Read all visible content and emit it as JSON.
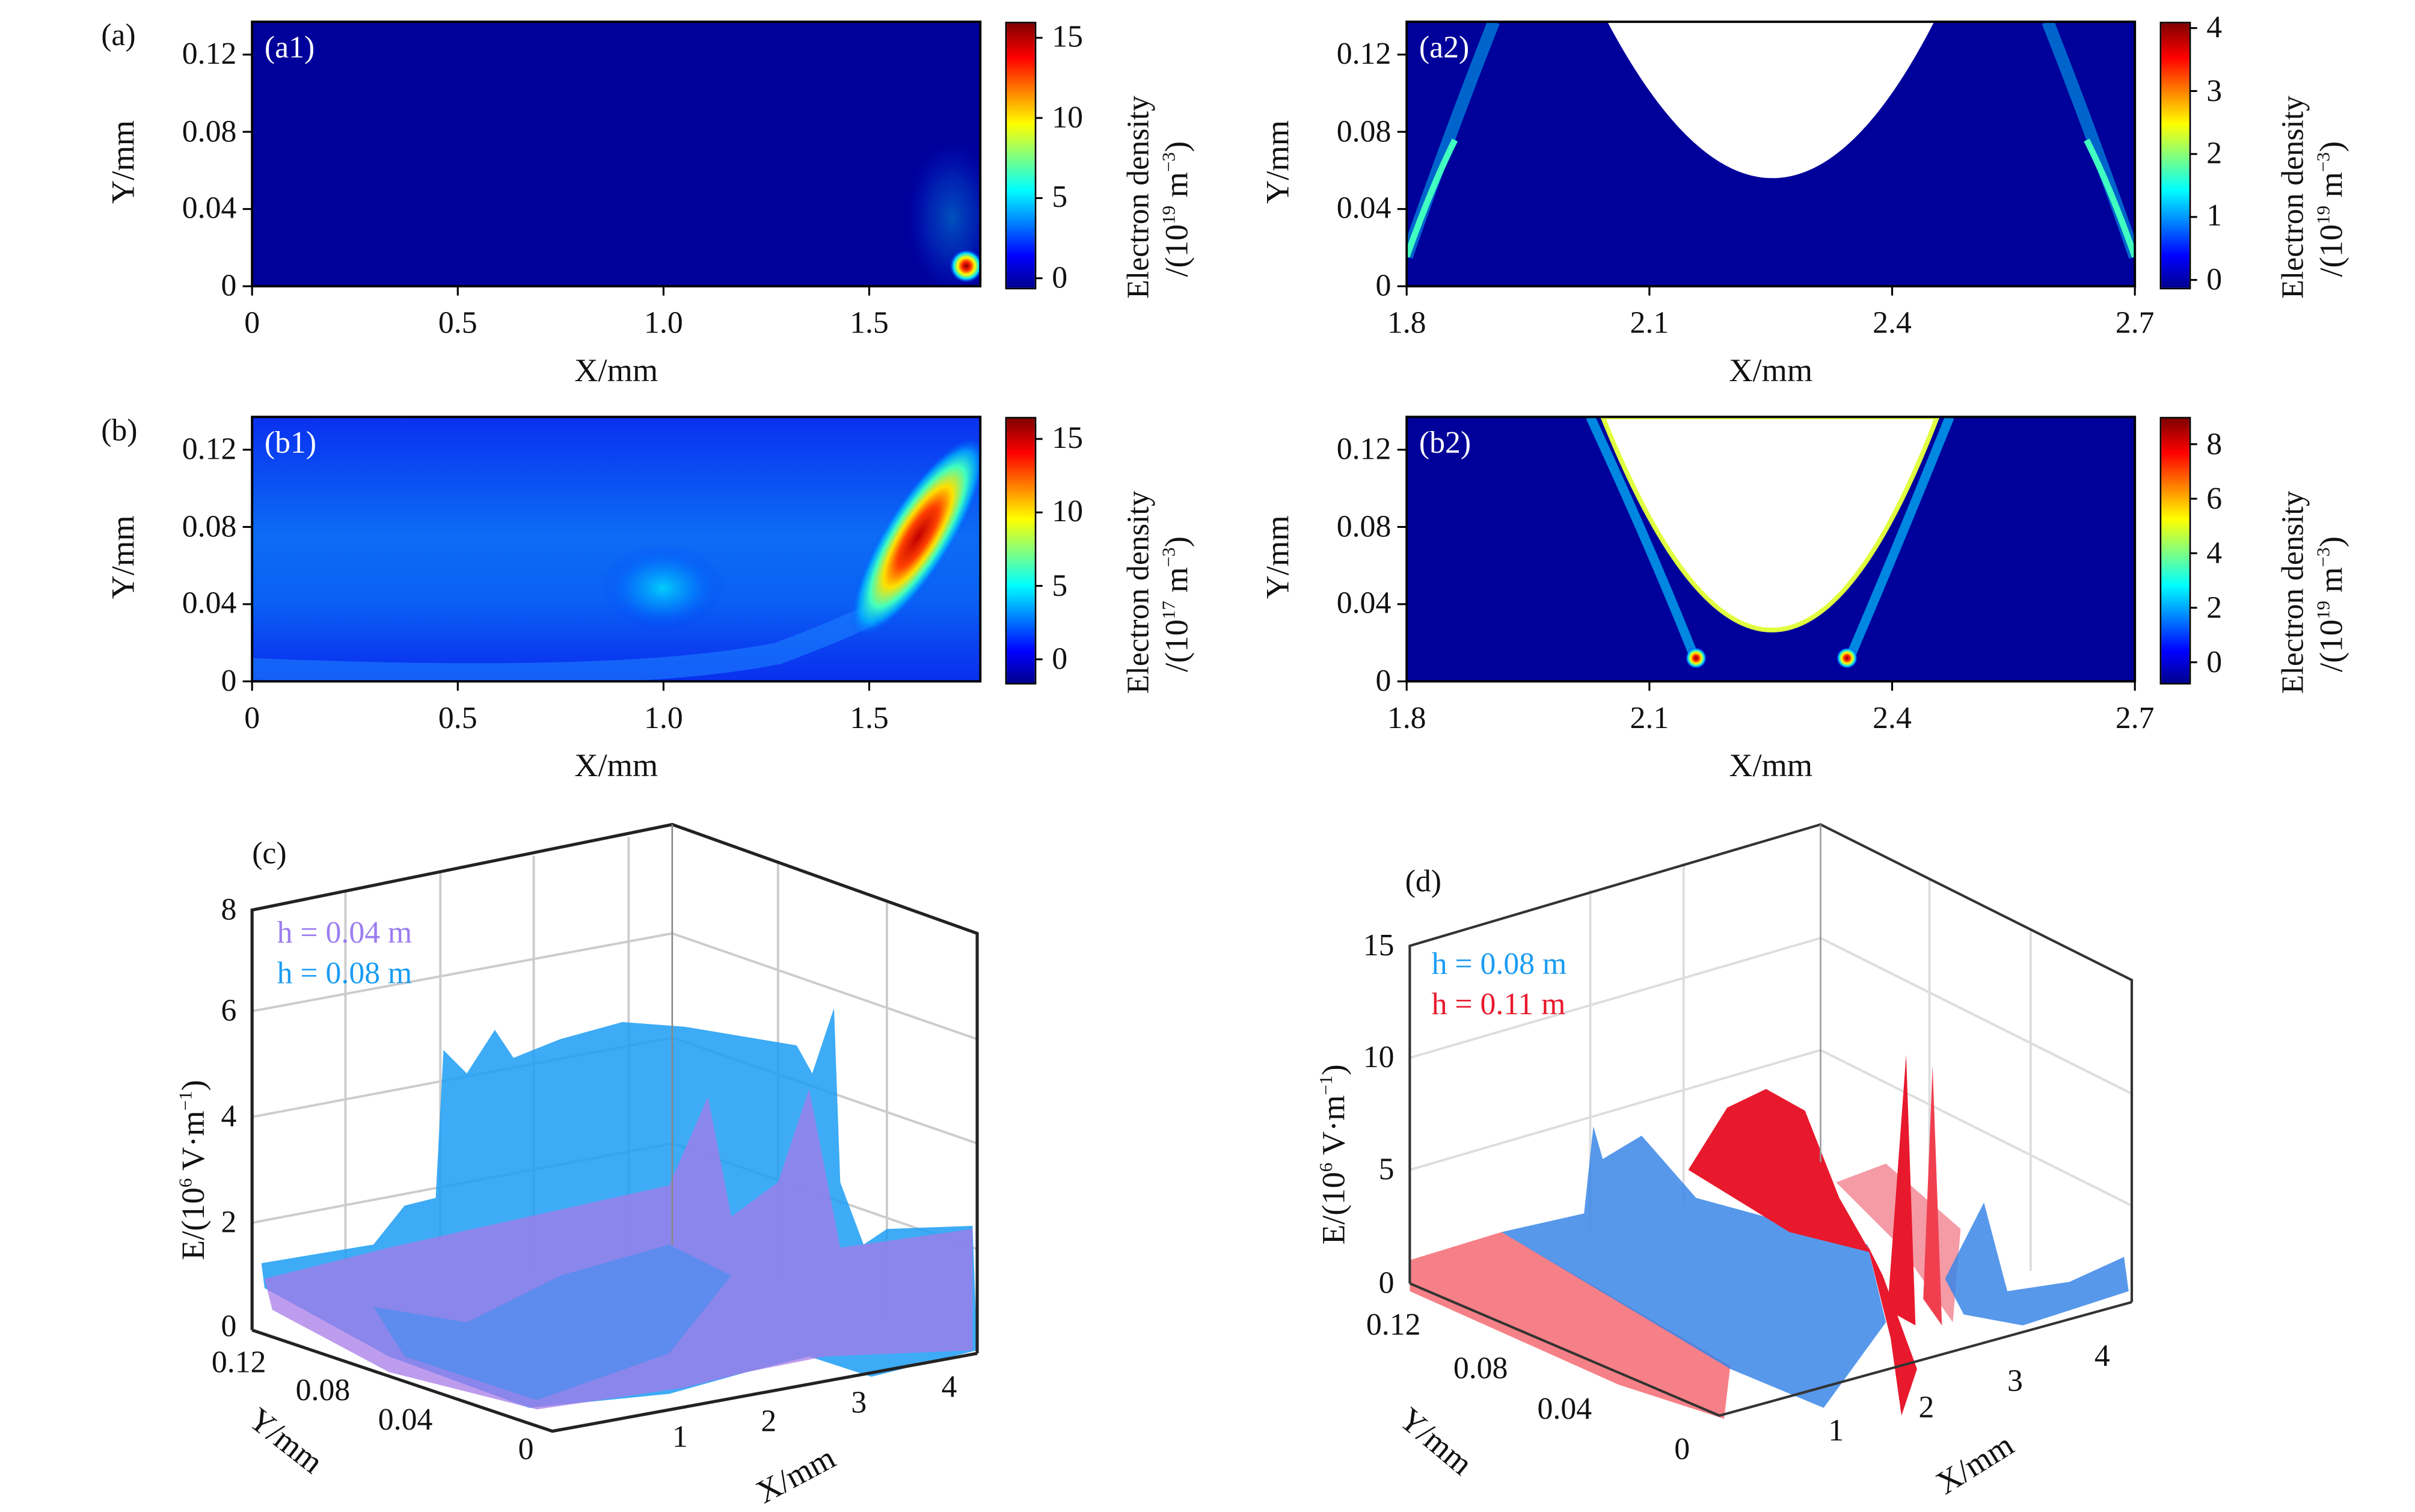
{
  "chart_data": [
    {
      "panel": "a1",
      "group_label": "(a)",
      "inset_label": "(a1)",
      "type": "heatmap",
      "xlabel": "X/mm",
      "ylabel": "Y/mm",
      "xticks": [
        "0",
        "0.5",
        "1.0",
        "1.5"
      ],
      "yticks": [
        "0",
        "0.04",
        "0.08",
        "0.12"
      ],
      "xlim": [
        0,
        1.77
      ],
      "ylim": [
        0,
        0.137
      ],
      "colorbar": {
        "title": "Electron density",
        "unit_prefix": "/(10",
        "unit_exp": "19",
        "unit_mid": " m",
        "unit_exp2": "−3",
        "unit_suffix": ")",
        "ticks": [
          "0",
          "5",
          "10",
          "15"
        ],
        "clim": [
          -0.5,
          16
        ]
      },
      "features": "hot spot near x=1.75, y=0.01"
    },
    {
      "panel": "a2",
      "inset_label": "(a2)",
      "type": "heatmap",
      "xlabel": "X/mm",
      "ylabel": "Y/mm",
      "xticks": [
        "1.8",
        "2.1",
        "2.4",
        "2.7"
      ],
      "yticks": [
        "0",
        "0.04",
        "0.08",
        "0.12"
      ],
      "xlim": [
        1.8,
        2.7
      ],
      "ylim": [
        0,
        0.137
      ],
      "colorbar": {
        "title": "Electron density",
        "unit_prefix": "/(10",
        "unit_exp": "19",
        "unit_mid": " m",
        "unit_exp2": "−3",
        "unit_suffix": ")",
        "ticks": [
          "0",
          "1",
          "2",
          "3",
          "4"
        ],
        "clim": [
          -0.1,
          4.1
        ]
      }
    },
    {
      "panel": "b1",
      "group_label": "(b)",
      "inset_label": "(b1)",
      "type": "heatmap",
      "xlabel": "X/mm",
      "ylabel": "Y/mm",
      "xticks": [
        "0",
        "0.5",
        "1.0",
        "1.5"
      ],
      "yticks": [
        "0",
        "0.04",
        "0.08",
        "0.12"
      ],
      "xlim": [
        0,
        1.77
      ],
      "ylim": [
        0,
        0.137
      ],
      "colorbar": {
        "title": "Electron density",
        "unit_prefix": "/(10",
        "unit_exp": "17",
        "unit_mid": " m",
        "unit_exp2": "−3",
        "unit_suffix": ")",
        "ticks": [
          "0",
          "5",
          "10",
          "15"
        ],
        "clim": [
          -1.5,
          16.5
        ]
      }
    },
    {
      "panel": "b2",
      "inset_label": "(b2)",
      "type": "heatmap",
      "xlabel": "X/mm",
      "ylabel": "Y/mm",
      "xticks": [
        "1.8",
        "2.1",
        "2.4",
        "2.7"
      ],
      "yticks": [
        "0",
        "0.04",
        "0.08",
        "0.12"
      ],
      "xlim": [
        1.8,
        2.7
      ],
      "ylim": [
        0,
        0.137
      ],
      "colorbar": {
        "title": "Electron density",
        "unit_prefix": "/(10",
        "unit_exp": "19",
        "unit_mid": " m",
        "unit_exp2": "−3",
        "unit_suffix": ")",
        "ticks": [
          "0",
          "2",
          "4",
          "6",
          "8"
        ],
        "clim": [
          -0.7,
          9
        ]
      }
    },
    {
      "panel": "c",
      "group_label": "(c)",
      "type": "surface",
      "xlabel": "X/mm",
      "ylabel": "Y/mm",
      "zlabel": {
        "prefix": "E/(10",
        "exp": "6",
        "mid": " V·m",
        "exp2": "−1",
        "suffix": ")"
      },
      "xticks": [
        "1",
        "2",
        "3",
        "4"
      ],
      "yticks": [
        "0.12",
        "0.08",
        "0.04",
        "0"
      ],
      "zticks": [
        "0",
        "2",
        "4",
        "6",
        "8"
      ],
      "zlim": [
        0,
        8
      ],
      "legend": [
        {
          "text": "h = 0.04 m",
          "color": "#9b7df0"
        },
        {
          "text": "h = 0.08 m",
          "color": "#1b9cf3"
        }
      ]
    },
    {
      "panel": "d",
      "group_label": "(d)",
      "type": "surface",
      "xlabel": "X/mm",
      "ylabel": "Y/mm",
      "zlabel": {
        "prefix": "E/(10",
        "exp": "6",
        "mid": " V·m",
        "exp2": "−1",
        "suffix": ")"
      },
      "xticks": [
        "1",
        "2",
        "3",
        "4"
      ],
      "yticks": [
        "0.12",
        "0.08",
        "0.04",
        "0"
      ],
      "zticks": [
        "0",
        "5",
        "10",
        "15"
      ],
      "zlim": [
        0,
        15
      ],
      "legend": [
        {
          "text": "h = 0.08 m",
          "color": "#1b9cf3"
        },
        {
          "text": "h = 0.11 m",
          "color": "#e8192c"
        }
      ]
    }
  ],
  "colors": {
    "jet_low": "#00008f",
    "jet_high": "#800000",
    "blue_surface": "#1b9cf3",
    "purple_surface": "#a77be8",
    "red_surface": "#e8192c"
  }
}
